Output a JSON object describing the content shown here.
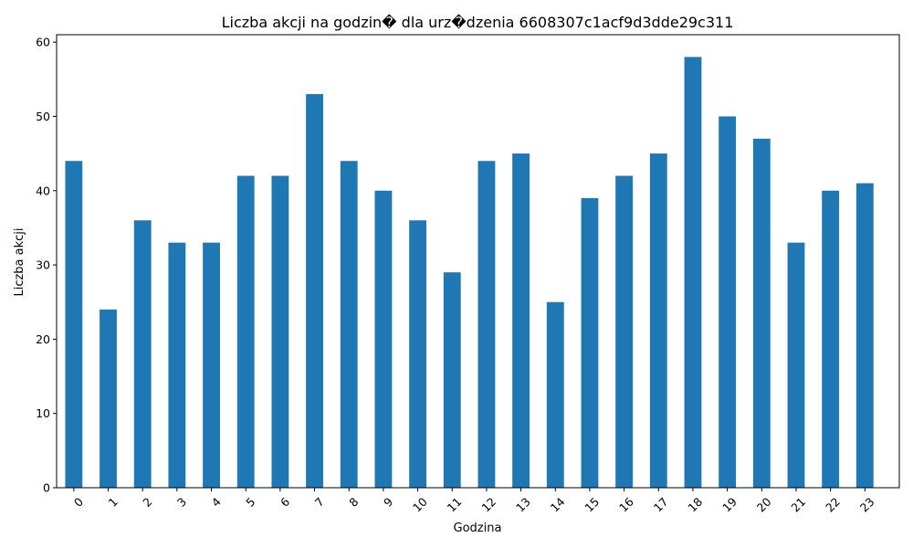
{
  "chart_data": {
    "type": "bar",
    "title": "Liczba akcji na godzin� dla urz�dzenia 6608307c1acf9d3dde29c311",
    "xlabel": "Godzina",
    "ylabel": "Liczba akcji",
    "categories": [
      "0",
      "1",
      "2",
      "3",
      "4",
      "5",
      "6",
      "7",
      "8",
      "9",
      "10",
      "11",
      "12",
      "13",
      "14",
      "15",
      "16",
      "17",
      "18",
      "19",
      "20",
      "21",
      "22",
      "23"
    ],
    "values": [
      44,
      24,
      36,
      33,
      33,
      42,
      42,
      53,
      44,
      40,
      36,
      29,
      44,
      45,
      25,
      39,
      42,
      45,
      58,
      50,
      47,
      33,
      40,
      41
    ],
    "ylim": [
      0,
      61
    ],
    "yticks": [
      0,
      10,
      20,
      30,
      40,
      50,
      60
    ],
    "grid": false,
    "bar_color": "#1f77b4"
  }
}
